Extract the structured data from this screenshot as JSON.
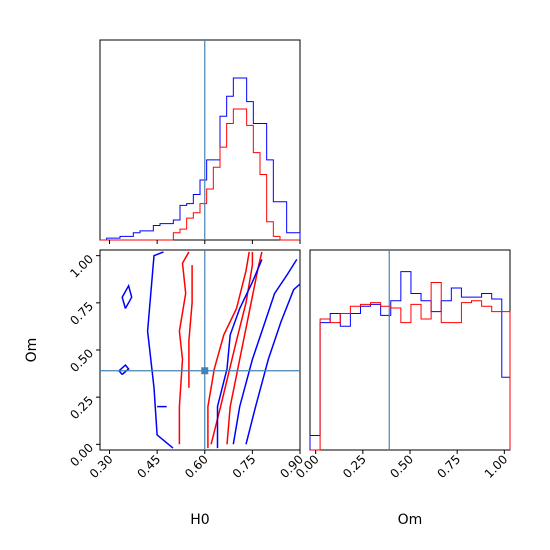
{
  "chart_data": {
    "type": "corner",
    "parameters": [
      "H0",
      "Om"
    ],
    "truths": {
      "H0": 0.6,
      "Om": 0.39
    },
    "truth_color": "#4682b4",
    "colors": {
      "red_series": "#ff0000",
      "blue_series": "#0000ff"
    },
    "axes": {
      "H0": {
        "label": "H0",
        "range": [
          0.27,
          0.9
        ],
        "ticks": [
          0.3,
          0.45,
          0.6,
          0.75,
          0.9
        ],
        "tick_labels": [
          "0.30",
          "0.45",
          "0.60",
          "0.75",
          "0.90"
        ]
      },
      "Om": {
        "label": "Om",
        "range": [
          -0.03,
          1.03
        ],
        "ticks": [
          0.0,
          0.25,
          0.5,
          0.75,
          1.0
        ],
        "tick_labels": [
          "0.00",
          "0.25",
          "0.50",
          "0.75",
          "1.00"
        ]
      }
    },
    "hist_H0": {
      "edges": [
        0.27,
        0.291,
        0.312,
        0.333,
        0.354,
        0.375,
        0.396,
        0.417,
        0.438,
        0.459,
        0.48,
        0.501,
        0.522,
        0.543,
        0.564,
        0.585,
        0.606,
        0.627,
        0.648,
        0.669,
        0.69,
        0.711,
        0.732,
        0.753,
        0.774,
        0.795,
        0.816,
        0.837,
        0.858,
        0.879,
        0.9
      ],
      "series": [
        {
          "color": "#0000ff",
          "counts": [
            0.0,
            0.01,
            0.01,
            0.02,
            0.02,
            0.04,
            0.05,
            0.05,
            0.08,
            0.09,
            0.09,
            0.11,
            0.19,
            0.2,
            0.25,
            0.33,
            0.44,
            0.44,
            0.68,
            0.79,
            0.89,
            0.89,
            0.76,
            0.64,
            0.64,
            0.44,
            0.21,
            0.21,
            0.04,
            0.04
          ]
        },
        {
          "color": "#ff0000",
          "counts": [
            0.0,
            0.0,
            0.0,
            0.0,
            0.0,
            0.0,
            0.0,
            0.0,
            0.0,
            0.0,
            0.0,
            0.04,
            0.06,
            0.12,
            0.15,
            0.2,
            0.28,
            0.4,
            0.51,
            0.64,
            0.72,
            0.72,
            0.63,
            0.48,
            0.36,
            0.1,
            0.02,
            0.0,
            0.0,
            0.0
          ]
        }
      ]
    },
    "hist_Om": {
      "edges": [
        -0.03,
        0.0235,
        0.077,
        0.1305,
        0.184,
        0.2375,
        0.291,
        0.3445,
        0.398,
        0.4515,
        0.505,
        0.5585,
        0.612,
        0.6655,
        0.719,
        0.7725,
        0.826,
        0.8795,
        0.933,
        0.9865,
        1.03
      ],
      "series": [
        {
          "color": "#0000ff",
          "counts": [
            0.08,
            0.7,
            0.75,
            0.68,
            0.75,
            0.79,
            0.8,
            0.74,
            0.82,
            0.98,
            0.86,
            0.82,
            0.76,
            0.82,
            0.89,
            0.84,
            0.84,
            0.86,
            0.83,
            0.4
          ]
        },
        {
          "color": "#ff0000",
          "counts": [
            0.0,
            0.72,
            0.7,
            0.75,
            0.79,
            0.8,
            0.81,
            0.79,
            0.78,
            0.7,
            0.8,
            0.72,
            0.92,
            0.7,
            0.7,
            0.81,
            0.82,
            0.79,
            0.76,
            0.76
          ]
        }
      ]
    },
    "contours_H0_Om": [
      {
        "color": "#ff0000",
        "points": [
          [
            0.67,
            0.0
          ],
          [
            0.68,
            0.2
          ],
          [
            0.71,
            0.45
          ],
          [
            0.74,
            0.7
          ],
          [
            0.77,
            0.95
          ],
          [
            0.78,
            1.02
          ]
        ]
      },
      {
        "color": "#ff0000",
        "points": [
          [
            0.62,
            0.0
          ],
          [
            0.65,
            0.2
          ],
          [
            0.7,
            0.55
          ],
          [
            0.73,
            0.75
          ],
          [
            0.75,
            0.95
          ],
          [
            0.75,
            1.02
          ]
        ]
      },
      {
        "color": "#ff0000",
        "points": [
          [
            0.61,
            -0.02
          ],
          [
            0.61,
            0.2
          ],
          [
            0.63,
            0.4
          ],
          [
            0.66,
            0.58
          ],
          [
            0.7,
            0.72
          ],
          [
            0.73,
            0.92
          ],
          [
            0.74,
            1.02
          ]
        ]
      },
      {
        "color": "#ff0000",
        "points": [
          [
            0.52,
            0.0
          ],
          [
            0.52,
            0.2
          ],
          [
            0.53,
            0.45
          ],
          [
            0.52,
            0.6
          ],
          [
            0.54,
            0.8
          ],
          [
            0.53,
            0.96
          ],
          [
            0.55,
            1.02
          ]
        ]
      },
      {
        "color": "#ff0000",
        "points": [
          [
            0.55,
            0.3
          ],
          [
            0.55,
            0.55
          ],
          [
            0.56,
            0.75
          ],
          [
            0.56,
            0.95
          ]
        ]
      },
      {
        "color": "#0000ff",
        "points": [
          [
            0.69,
            0.0
          ],
          [
            0.71,
            0.2
          ],
          [
            0.75,
            0.45
          ],
          [
            0.79,
            0.65
          ],
          [
            0.82,
            0.8
          ],
          [
            0.86,
            0.9
          ],
          [
            0.89,
            0.98
          ]
        ]
      },
      {
        "color": "#0000ff",
        "points": [
          [
            0.73,
            0.0
          ],
          [
            0.76,
            0.2
          ],
          [
            0.8,
            0.45
          ],
          [
            0.84,
            0.65
          ],
          [
            0.88,
            0.82
          ],
          [
            0.9,
            0.85
          ]
        ]
      },
      {
        "color": "#0000ff",
        "points": [
          [
            0.64,
            -0.02
          ],
          [
            0.64,
            0.2
          ],
          [
            0.67,
            0.4
          ],
          [
            0.68,
            0.58
          ],
          [
            0.71,
            0.72
          ],
          [
            0.75,
            0.86
          ],
          [
            0.78,
            0.98
          ]
        ]
      },
      {
        "color": "#0000ff",
        "points": [
          [
            0.5,
            -0.02
          ],
          [
            0.45,
            0.05
          ],
          [
            0.44,
            0.3
          ],
          [
            0.42,
            0.6
          ],
          [
            0.43,
            0.8
          ],
          [
            0.44,
            1.0
          ],
          [
            0.47,
            1.02
          ]
        ]
      },
      {
        "color": "#0000ff",
        "points": [
          [
            0.35,
            0.72
          ],
          [
            0.37,
            0.78
          ],
          [
            0.36,
            0.84
          ],
          [
            0.34,
            0.78
          ],
          [
            0.35,
            0.72
          ]
        ]
      },
      {
        "color": "#0000ff",
        "points": [
          [
            0.34,
            0.37
          ],
          [
            0.36,
            0.4
          ],
          [
            0.35,
            0.42
          ],
          [
            0.33,
            0.39
          ],
          [
            0.34,
            0.37
          ]
        ]
      },
      {
        "color": "#0000ff",
        "points": [
          [
            0.45,
            0.2
          ],
          [
            0.48,
            0.2
          ]
        ]
      }
    ]
  }
}
